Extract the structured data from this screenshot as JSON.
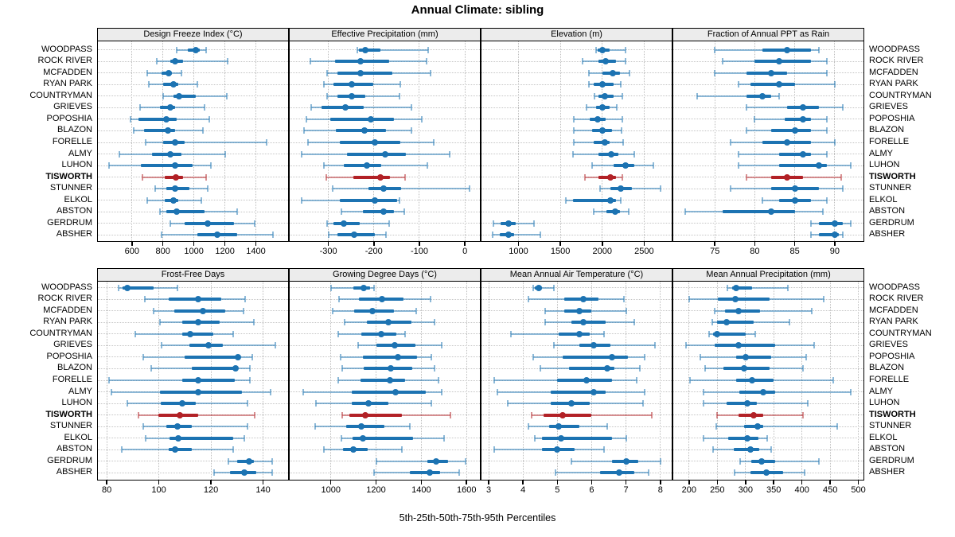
{
  "title": "Annual Climate: sibling",
  "footer": "5th-25th-50th-75th-95th Percentiles",
  "percentile_labels": [
    "5th",
    "25th",
    "50th",
    "75th",
    "95th"
  ],
  "colors": {
    "series_normal": "#1c73b2",
    "series_highlight": "#b22126",
    "grid": "#c4c4c4",
    "strip_bg": "#ececec",
    "panel_border": "#000000",
    "text": "#000000"
  },
  "sites": [
    "WOODPASS",
    "ROCK RIVER",
    "MCFADDEN",
    "RYAN PARK",
    "COUNTRYMAN",
    "GRIEVES",
    "POPOSHIA",
    "BLAZON",
    "FORELLE",
    "ALMY",
    "LUHON",
    "TISWORTH",
    "STUNNER",
    "ELKOL",
    "ABSTON",
    "GERDRUM",
    "ABSHER"
  ],
  "highlight_site": "TISWORTH",
  "chart_data": [
    {
      "type": "interval-dotplot",
      "title": "Design Freeze Index (°C)",
      "band": 0,
      "col": 0,
      "xlim": [
        380,
        1608
      ],
      "ticks": [
        600,
        800,
        1000,
        1200,
        1400
      ],
      "tick_labels": [
        "600",
        "800",
        "1000",
        "1200",
        "1400"
      ],
      "values": [
        [
          890,
          960,
          1010,
          1040,
          1080
        ],
        [
          760,
          850,
          880,
          930,
          1220
        ],
        [
          700,
          790,
          835,
          860,
          920
        ],
        [
          710,
          800,
          870,
          900,
          1020
        ],
        [
          800,
          870,
          905,
          1010,
          1210
        ],
        [
          650,
          780,
          845,
          880,
          1070
        ],
        [
          590,
          640,
          820,
          890,
          1100
        ],
        [
          610,
          680,
          830,
          880,
          1060
        ],
        [
          690,
          800,
          880,
          940,
          1470
        ],
        [
          520,
          730,
          845,
          920,
          1200
        ],
        [
          450,
          660,
          880,
          990,
          1110
        ],
        [
          670,
          810,
          885,
          930,
          1080
        ],
        [
          750,
          820,
          880,
          970,
          1090
        ],
        [
          700,
          810,
          870,
          900,
          1050
        ],
        [
          780,
          820,
          890,
          1070,
          1280
        ],
        [
          850,
          940,
          1090,
          1260,
          1390
        ],
        [
          790,
          1020,
          1150,
          1280,
          1510
        ]
      ]
    },
    {
      "type": "interval-dotplot",
      "title": "Effective Precipitation (mm)",
      "band": 0,
      "col": 1,
      "xlim": [
        -385,
        33
      ],
      "ticks": [
        -300,
        -200,
        -100,
        0
      ],
      "tick_labels": [
        "-300",
        "-200",
        "-100",
        "0"
      ],
      "values": [
        [
          -236,
          -232,
          -218,
          -186,
          -81
        ],
        [
          -340,
          -285,
          -230,
          -167,
          -85
        ],
        [
          -303,
          -280,
          -230,
          -159,
          -76
        ],
        [
          -310,
          -288,
          -249,
          -201,
          -142
        ],
        [
          -302,
          -280,
          -249,
          -219,
          -144
        ],
        [
          -338,
          -315,
          -262,
          -222,
          -118
        ],
        [
          -349,
          -295,
          -206,
          -156,
          -95
        ],
        [
          -353,
          -283,
          -221,
          -173,
          -118
        ],
        [
          -344,
          -274,
          -197,
          -141,
          -68
        ],
        [
          -359,
          -259,
          -175,
          -130,
          -33
        ],
        [
          -310,
          -266,
          -215,
          -183,
          -83
        ],
        [
          -304,
          -245,
          -185,
          -164,
          -131
        ],
        [
          -291,
          -212,
          -178,
          -141,
          10
        ],
        [
          -359,
          -274,
          -197,
          -148,
          -144
        ],
        [
          -272,
          -224,
          -178,
          -156,
          -133
        ],
        [
          -303,
          -288,
          -266,
          -231,
          -167
        ],
        [
          -299,
          -280,
          -243,
          -198,
          -173
        ]
      ]
    },
    {
      "type": "interval-dotplot",
      "title": "Elevation (m)",
      "band": 0,
      "col": 2,
      "xlim": [
        558,
        2829
      ],
      "ticks": [
        1000,
        1500,
        2000,
        2500
      ],
      "tick_labels": [
        "1000",
        "1500",
        "2000",
        "2500"
      ],
      "values": [
        [
          1930,
          1945,
          2000,
          2085,
          2280
        ],
        [
          1766,
          1959,
          2038,
          2162,
          2281
        ],
        [
          1844,
          2006,
          2125,
          2209,
          2325
        ],
        [
          1844,
          1897,
          2000,
          2131,
          2219
        ],
        [
          1906,
          1959,
          2028,
          2131,
          2241
        ],
        [
          1813,
          1928,
          2000,
          2084,
          2178
        ],
        [
          1663,
          1850,
          1944,
          2038,
          2241
        ],
        [
          1663,
          1881,
          2000,
          2116,
          2231
        ],
        [
          1656,
          1897,
          2028,
          2084,
          2250
        ],
        [
          1647,
          1953,
          2106,
          2194,
          2381
        ],
        [
          1881,
          2138,
          2281,
          2381,
          2606
        ],
        [
          1797,
          1959,
          2100,
          2162,
          2241
        ],
        [
          1975,
          2100,
          2219,
          2350,
          2694
        ],
        [
          1569,
          1647,
          2094,
          2162,
          2219
        ],
        [
          1897,
          2053,
          2156,
          2209,
          2313
        ],
        [
          700,
          788,
          881,
          969,
          1188
        ],
        [
          694,
          781,
          881,
          944,
          1263
        ]
      ]
    },
    {
      "type": "interval-dotplot",
      "title": "Fraction of Annual PPT as Rain",
      "band": 0,
      "col": 3,
      "xlim": [
        69.8,
        93.6
      ],
      "ticks": [
        75,
        80,
        85,
        90
      ],
      "tick_labels": [
        "75",
        "80",
        "85",
        "90"
      ],
      "values": [
        [
          75,
          81,
          84,
          87,
          88
        ],
        [
          76,
          80,
          83,
          87,
          89
        ],
        [
          75,
          79,
          82,
          84,
          89
        ],
        [
          78,
          79.5,
          83,
          85,
          90
        ],
        [
          72.8,
          79,
          81,
          82,
          83
        ],
        [
          79,
          84,
          86,
          88,
          91
        ],
        [
          80,
          83.7,
          86,
          87,
          89
        ],
        [
          79,
          82,
          85,
          87,
          89
        ],
        [
          77,
          81,
          84,
          87,
          90
        ],
        [
          78,
          83,
          86,
          87,
          89
        ],
        [
          78,
          83,
          88,
          89,
          92
        ],
        [
          79,
          82,
          84,
          86,
          90.8
        ],
        [
          77,
          82,
          85,
          88,
          91
        ],
        [
          81,
          83,
          85,
          87,
          89
        ],
        [
          71.3,
          76,
          82,
          85,
          88.5
        ],
        [
          87,
          88,
          90,
          91,
          92
        ],
        [
          87,
          88,
          90,
          90.5,
          91
        ]
      ]
    },
    {
      "type": "interval-dotplot",
      "title": "Frost-Free Days",
      "band": 1,
      "col": 0,
      "xlim": [
        76.6,
        149.6
      ],
      "ticks": [
        80,
        100,
        120,
        140
      ],
      "tick_labels": [
        "80",
        "100",
        "120",
        "140"
      ],
      "values": [
        [
          84.5,
          86,
          88,
          98,
          107
        ],
        [
          94.6,
          103.7,
          115,
          124,
          133
        ],
        [
          98,
          105.8,
          117,
          125.5,
          132.5
        ],
        [
          100.4,
          109,
          115,
          123.4,
          136.6
        ],
        [
          90.9,
          109,
          112,
          121,
          128.5
        ],
        [
          101,
          111.8,
          119,
          124.6,
          144.6
        ],
        [
          93.9,
          110,
          130.3,
          131.3,
          135.8
        ],
        [
          97,
          112.5,
          129.5,
          130.5,
          135
        ],
        [
          81,
          109,
          115,
          129,
          135
        ],
        [
          81.8,
          100.4,
          115,
          131.9,
          142.8
        ],
        [
          87.9,
          100.7,
          109,
          114.2,
          134
        ],
        [
          92.1,
          99.7,
          108,
          115.2,
          136.8
        ],
        [
          93.9,
          103,
          107,
          112.5,
          134
        ],
        [
          94.9,
          104,
          107.3,
          128.5,
          132.7
        ],
        [
          85.9,
          103.7,
          106.3,
          112.5,
          128.5
        ],
        [
          126.7,
          130,
          134.7,
          136.6,
          143.6
        ],
        [
          121.2,
          127.3,
          132.7,
          137.4,
          143.6
        ]
      ]
    },
    {
      "type": "interval-dotplot",
      "title": "Growing Degree Days (°C)",
      "band": 1,
      "col": 1,
      "xlim": [
        818,
        1659
      ],
      "ticks": [
        1000,
        1200,
        1400,
        1600
      ],
      "tick_labels": [
        "1000",
        "1200",
        "1400",
        "1600"
      ],
      "values": [
        [
          1000,
          1100,
          1145,
          1175,
          1190
        ],
        [
          1037,
          1125,
          1226,
          1322,
          1441
        ],
        [
          1008,
          1102,
          1185,
          1278,
          1377
        ],
        [
          1060,
          1159,
          1255,
          1357,
          1457
        ],
        [
          1031,
          1136,
          1223,
          1291,
          1329
        ],
        [
          1121,
          1203,
          1283,
          1373,
          1491
        ],
        [
          1042,
          1142,
          1298,
          1380,
          1445
        ],
        [
          1049,
          1144,
          1264,
          1359,
          1457
        ],
        [
          1034,
          1130,
          1261,
          1329,
          1476
        ],
        [
          879,
          1091,
          1287,
          1420,
          1491
        ],
        [
          935,
          1091,
          1167,
          1255,
          1445
        ],
        [
          1049,
          1083,
          1151,
          1314,
          1529
        ],
        [
          929,
          1068,
          1136,
          1238,
          1348
        ],
        [
          1045,
          1096,
          1140,
          1362,
          1499
        ],
        [
          969,
          1053,
          1099,
          1162,
          1314
        ],
        [
          1200,
          1425,
          1465,
          1520,
          1595
        ],
        [
          1192,
          1349,
          1436,
          1482,
          1567
        ]
      ]
    },
    {
      "type": "interval-dotplot",
      "title": "Mean Annual Air Temperature (°C)",
      "band": 1,
      "col": 2,
      "xlim": [
        2.79,
        8.33
      ],
      "ticks": [
        3,
        4,
        5,
        6,
        7,
        8
      ],
      "tick_labels": [
        "3",
        "4",
        "5",
        "6",
        "7",
        "8"
      ],
      "values": [
        [
          4.3,
          4.35,
          4.45,
          4.55,
          4.9
        ],
        [
          4.15,
          5.2,
          5.75,
          6.2,
          6.95
        ],
        [
          4.65,
          5.2,
          5.65,
          6.0,
          7.0
        ],
        [
          4.65,
          5.4,
          5.75,
          6.4,
          7.25
        ],
        [
          3.65,
          5.05,
          5.65,
          5.95,
          6.35
        ],
        [
          4.9,
          5.65,
          6.05,
          6.55,
          7.85
        ],
        [
          4.3,
          5.15,
          6.6,
          7.05,
          7.55
        ],
        [
          4.5,
          5.35,
          6.45,
          6.65,
          7.4
        ],
        [
          3.15,
          5.0,
          5.85,
          6.6,
          7.3
        ],
        [
          3.25,
          4.8,
          6.05,
          6.4,
          7.55
        ],
        [
          3.55,
          4.8,
          5.4,
          5.95,
          7.5
        ],
        [
          4.25,
          4.6,
          5.15,
          6.0,
          7.75
        ],
        [
          4.15,
          4.75,
          5.05,
          5.65,
          6.45
        ],
        [
          4.35,
          4.55,
          5.1,
          6.6,
          7.0
        ],
        [
          3.15,
          4.55,
          5.0,
          5.5,
          6.35
        ],
        [
          5.4,
          6.6,
          7.0,
          7.35,
          8.0
        ],
        [
          4.95,
          6.25,
          6.8,
          7.25,
          7.65
        ]
      ]
    },
    {
      "type": "interval-dotplot",
      "title": "Mean Annual Precipitation (mm)",
      "band": 1,
      "col": 3,
      "xlim": [
        172,
        509
      ],
      "ticks": [
        200,
        250,
        300,
        350,
        400,
        450,
        500
      ],
      "tick_labels": [
        "200",
        "250",
        "300",
        "350",
        "400",
        "450",
        "500"
      ],
      "values": [
        [
          268,
          276,
          283,
          311,
          375
        ],
        [
          200,
          251,
          282,
          342,
          438
        ],
        [
          245,
          264,
          287,
          326,
          417
        ],
        [
          241,
          250,
          267,
          314,
          378
        ],
        [
          236,
          242,
          250,
          300,
          317
        ],
        [
          194,
          245,
          287,
          352,
          421
        ],
        [
          220,
          283,
          300,
          346,
          408
        ],
        [
          229,
          261,
          297,
          343,
          402
        ],
        [
          202,
          284,
          312,
          350,
          455
        ],
        [
          225,
          289,
          332,
          353,
          487
        ],
        [
          226,
          267,
          303,
          320,
          410
        ],
        [
          249,
          287,
          314,
          331,
          402
        ],
        [
          248,
          298,
          321,
          332,
          462
        ],
        [
          225,
          269,
          303,
          323,
          339
        ],
        [
          242,
          279,
          309,
          325,
          345
        ],
        [
          290,
          310,
          329,
          353,
          430
        ],
        [
          281,
          309,
          337,
          367,
          404
        ]
      ]
    }
  ]
}
